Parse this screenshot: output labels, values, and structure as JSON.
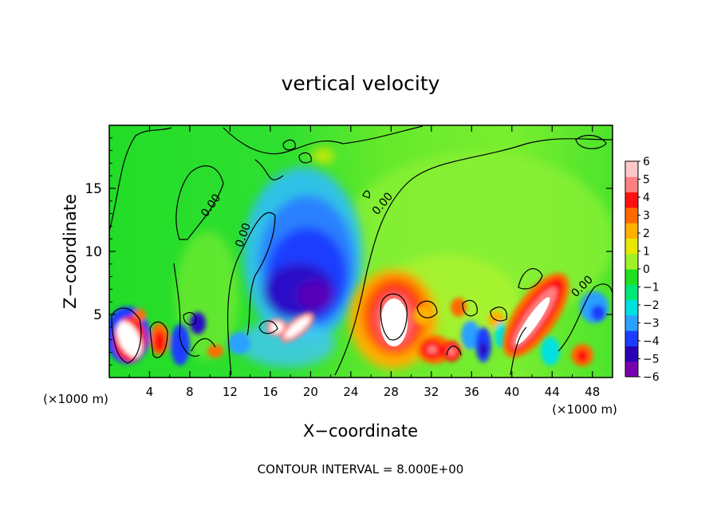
{
  "chart_data": {
    "type": "heatmap",
    "title": "vertical velocity",
    "xlabel": "X−coordinate",
    "ylabel": "Z−coordinate",
    "x_unit_left": "(×1000 m)",
    "x_unit_right": "(×1000 m)",
    "footer": "CONTOUR INTERVAL = 8.000E+00",
    "xlim": [
      0,
      50
    ],
    "ylim": [
      0,
      20
    ],
    "x_ticks": [
      4,
      8,
      12,
      16,
      20,
      24,
      28,
      32,
      36,
      40,
      44,
      48
    ],
    "y_ticks": [
      5,
      10,
      15
    ],
    "contour_labels": [
      "0.00",
      "0.00",
      "0.00",
      "0.00"
    ],
    "colorbar": {
      "min": -6,
      "max": 6,
      "ticks": [
        6,
        5,
        4,
        3,
        2,
        1,
        0,
        -1,
        -2,
        -3,
        -4,
        -5,
        -6
      ],
      "tick_labels": [
        "6",
        "5",
        "4",
        "3",
        "2",
        "1",
        "0",
        "−1",
        "−2",
        "−3",
        "−4",
        "−5",
        "−6"
      ],
      "colors": [
        "#7a00b0",
        "#2a00b4",
        "#1a3cff",
        "#2aa0ff",
        "#00e0e0",
        "#00e878",
        "#20e020",
        "#a0f028",
        "#e8e800",
        "#ffb000",
        "#ff6a00",
        "#ff1010",
        "#ff8080",
        "#ffc8c8"
      ]
    },
    "features": [
      {
        "kind": "updraft",
        "x": 1.8,
        "z": 3.2,
        "w": 10
      },
      {
        "kind": "updraft",
        "x": 5.0,
        "z": 2.8,
        "w": 5
      },
      {
        "kind": "downdraft",
        "x": 6.5,
        "z": 2.5,
        "w": -5
      },
      {
        "kind": "downdraft",
        "x": 2.0,
        "z": 4.5,
        "w": -4
      },
      {
        "kind": "downdraft",
        "x": 8.8,
        "z": 4.2,
        "w": -4
      },
      {
        "kind": "downdraft",
        "x": 19.5,
        "z": 8.5,
        "w": -6
      },
      {
        "kind": "downdraft",
        "x": 21.0,
        "z": 5.5,
        "w": -6
      },
      {
        "kind": "updraft",
        "x": 17.3,
        "z": 4.2,
        "w": 8
      },
      {
        "kind": "updraft",
        "x": 18.5,
        "z": 4.5,
        "w": 9
      },
      {
        "kind": "updraft",
        "x": 29.0,
        "z": 4.7,
        "w": 9
      },
      {
        "kind": "updraft",
        "x": 32.5,
        "z": 2.3,
        "w": 6
      },
      {
        "kind": "updraft",
        "x": 34.0,
        "z": 2.5,
        "w": 5
      },
      {
        "kind": "downdraft",
        "x": 37.6,
        "z": 2.3,
        "w": -5
      },
      {
        "kind": "downdraft",
        "x": 35.5,
        "z": 4.0,
        "w": -3
      },
      {
        "kind": "updraft",
        "x": 43.0,
        "z": 5.0,
        "w": 9
      },
      {
        "kind": "updraft",
        "x": 47.0,
        "z": 2.0,
        "w": 4
      },
      {
        "kind": "downdraft",
        "x": 48.5,
        "z": 5.5,
        "w": -3
      }
    ]
  }
}
